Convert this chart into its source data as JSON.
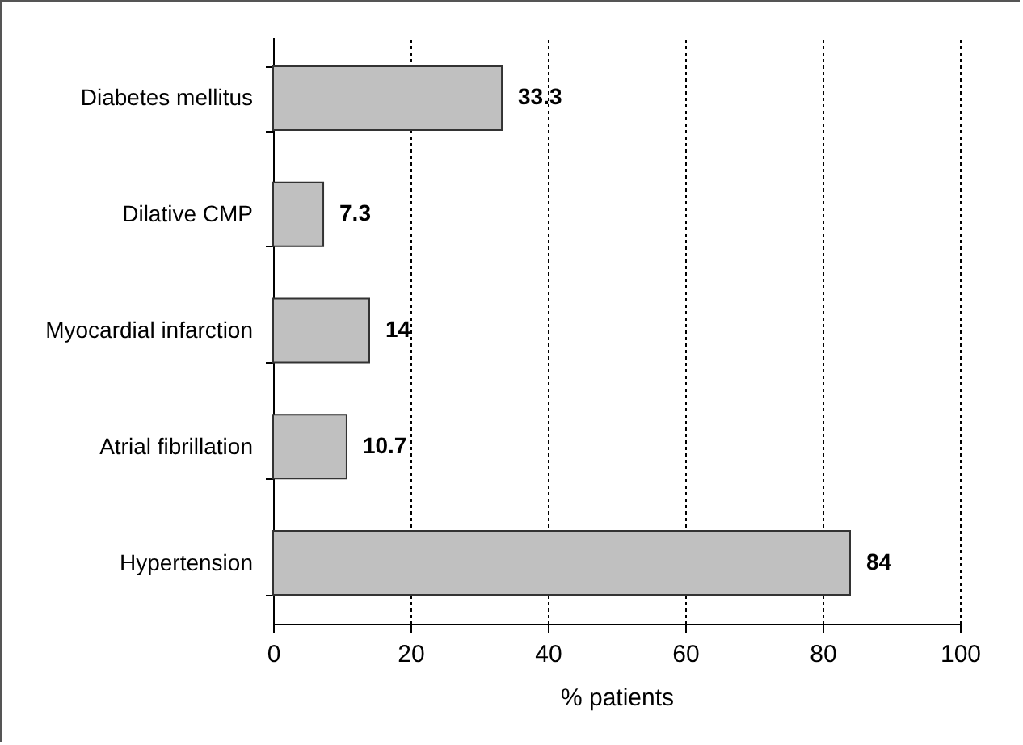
{
  "chart_data": {
    "type": "bar",
    "orientation": "horizontal",
    "xlabel": "% patients",
    "categories": [
      "Diabetes mellitus",
      "Dilative CMP",
      "Myocardial infarction",
      "Atrial fibrillation",
      "Hypertension"
    ],
    "values": [
      33.3,
      7.3,
      14,
      10.7,
      84
    ],
    "color": "#c0c0c0",
    "xlim": [
      0,
      100
    ],
    "xticks": [
      0,
      20,
      40,
      60,
      80,
      100
    ],
    "grid": "x",
    "data_labels": true
  }
}
